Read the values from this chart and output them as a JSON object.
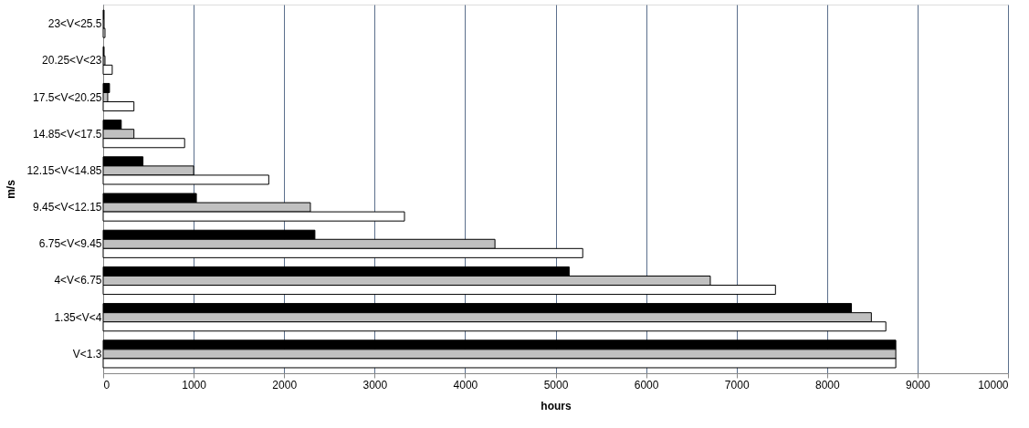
{
  "chart_data": {
    "type": "bar",
    "orientation": "horizontal",
    "xlabel": "hours",
    "ylabel": "m/s",
    "categories": [
      "23<V<25.5",
      "20.25<V<23",
      "17.5<V<20.25",
      "14.85<V<17.5",
      "12.15<V<14.85",
      "9.45<V<12.15",
      "6.75<V<9.45",
      "4<V<6.75",
      "1.35<V<4",
      "V<1.3"
    ],
    "series": [
      {
        "color": "#000000",
        "values": [
          10,
          10,
          70,
          200,
          440,
          1030,
          2340,
          5150,
          8270,
          8760
        ]
      },
      {
        "color": "#c0c0c0",
        "values": [
          10,
          20,
          50,
          340,
          1000,
          2290,
          4330,
          6710,
          8490,
          8760
        ]
      },
      {
        "color": "#ffffff",
        "values": [
          20,
          100,
          340,
          900,
          1830,
          3330,
          5300,
          7430,
          8650,
          8760
        ]
      }
    ],
    "xlim": [
      0,
      10000
    ],
    "xticks": [
      0,
      1000,
      2000,
      3000,
      4000,
      5000,
      6000,
      7000,
      8000,
      9000,
      10000
    ],
    "grid": "x"
  }
}
